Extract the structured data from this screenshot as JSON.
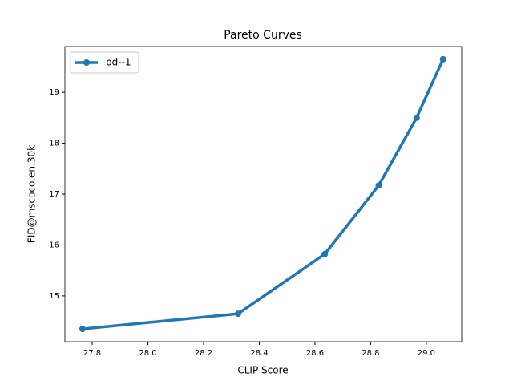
{
  "chart_data": {
    "type": "line",
    "title": "Pareto Curves",
    "x_label": "CLIP Score",
    "y_label": "FID@mscoco.en.30k",
    "x": [
      27.765,
      28.324,
      28.635,
      28.829,
      28.965,
      29.06
    ],
    "series": [
      {
        "name": "pd--1",
        "color": "#1f77b4",
        "values": [
          14.35,
          14.65,
          15.82,
          17.17,
          18.5,
          19.65
        ]
      }
    ],
    "xlim": [
      27.702,
      29.127
    ],
    "ylim": [
      14.1,
      19.9
    ],
    "xticks": [
      27.8,
      {
        "value": 28.0,
        "label": "28.0"
      },
      28.2,
      28.4,
      28.6,
      28.8,
      {
        "value": 29.0,
        "label": "29.0"
      }
    ],
    "yticks": [
      15,
      16,
      17,
      18,
      19
    ],
    "legend": "upper left",
    "grid": false
  }
}
